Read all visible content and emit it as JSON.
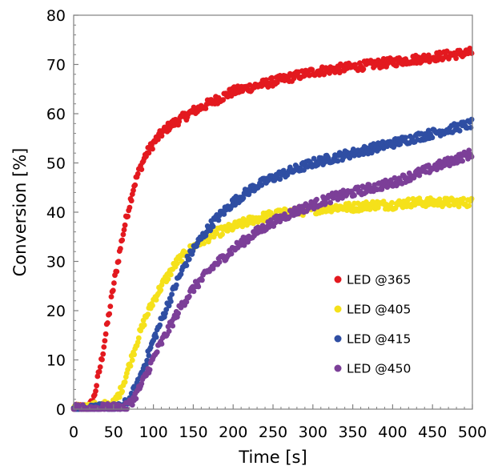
{
  "chart_data": {
    "type": "scatter",
    "xlabel": "Time [s]",
    "ylabel": "Conversion [%]",
    "xlim": [
      0,
      500
    ],
    "ylim": [
      0,
      80
    ],
    "x_ticks": [
      "0",
      "50",
      "100",
      "150",
      "200",
      "250",
      "300",
      "350",
      "400",
      "450",
      "500"
    ],
    "y_ticks": [
      "0",
      "10",
      "20",
      "30",
      "40",
      "50",
      "60",
      "70",
      "80"
    ],
    "grid": false,
    "legend_position": "bottom-right",
    "series": [
      {
        "name": "LED @365",
        "color": "#e3191f",
        "points": [
          [
            0,
            0
          ],
          [
            20,
            0.5
          ],
          [
            25,
            2
          ],
          [
            30,
            6
          ],
          [
            35,
            10
          ],
          [
            40,
            15
          ],
          [
            45,
            20
          ],
          [
            50,
            25
          ],
          [
            55,
            29.5
          ],
          [
            60,
            34
          ],
          [
            65,
            38
          ],
          [
            70,
            41.5
          ],
          [
            75,
            45
          ],
          [
            80,
            47.5
          ],
          [
            90,
            51.5
          ],
          [
            100,
            54
          ],
          [
            110,
            56
          ],
          [
            120,
            57.5
          ],
          [
            130,
            58.5
          ],
          [
            150,
            60.5
          ],
          [
            175,
            62.5
          ],
          [
            200,
            64.5
          ],
          [
            225,
            65.5
          ],
          [
            250,
            66.5
          ],
          [
            275,
            67.5
          ],
          [
            300,
            68.5
          ],
          [
            325,
            69
          ],
          [
            350,
            69.5
          ],
          [
            375,
            70
          ],
          [
            400,
            70.5
          ],
          [
            425,
            71
          ],
          [
            450,
            71.5
          ],
          [
            475,
            72
          ],
          [
            500,
            72.5
          ]
        ]
      },
      {
        "name": "LED @405",
        "color": "#f5e11a",
        "points": [
          [
            0,
            0
          ],
          [
            50,
            1
          ],
          [
            60,
            4
          ],
          [
            70,
            9
          ],
          [
            80,
            14
          ],
          [
            90,
            18.5
          ],
          [
            100,
            22
          ],
          [
            110,
            25
          ],
          [
            120,
            27.5
          ],
          [
            130,
            30
          ],
          [
            140,
            31.5
          ],
          [
            150,
            33
          ],
          [
            175,
            35.5
          ],
          [
            200,
            37
          ],
          [
            225,
            38.5
          ],
          [
            250,
            39.5
          ],
          [
            275,
            40
          ],
          [
            300,
            40.5
          ],
          [
            325,
            41
          ],
          [
            350,
            41
          ],
          [
            375,
            41.5
          ],
          [
            400,
            41.5
          ],
          [
            425,
            42
          ],
          [
            450,
            42
          ],
          [
            475,
            42
          ],
          [
            500,
            42
          ]
        ]
      },
      {
        "name": "LED @415",
        "color": "#2f4ea3",
        "points": [
          [
            0,
            0
          ],
          [
            60,
            0.3
          ],
          [
            70,
            2
          ],
          [
            80,
            5
          ],
          [
            90,
            9.5
          ],
          [
            100,
            14
          ],
          [
            110,
            18
          ],
          [
            120,
            22
          ],
          [
            130,
            26
          ],
          [
            140,
            29.5
          ],
          [
            150,
            32.5
          ],
          [
            175,
            38
          ],
          [
            200,
            42
          ],
          [
            225,
            45
          ],
          [
            250,
            47
          ],
          [
            275,
            48.5
          ],
          [
            300,
            50
          ],
          [
            325,
            51
          ],
          [
            350,
            52
          ],
          [
            375,
            53
          ],
          [
            400,
            54
          ],
          [
            425,
            55
          ],
          [
            450,
            56
          ],
          [
            475,
            57
          ],
          [
            500,
            58
          ]
        ]
      },
      {
        "name": "LED @450",
        "color": "#7c3f98",
        "points": [
          [
            0,
            0
          ],
          [
            65,
            0.3
          ],
          [
            75,
            2
          ],
          [
            85,
            5
          ],
          [
            95,
            8.5
          ],
          [
            105,
            12
          ],
          [
            115,
            15
          ],
          [
            125,
            18
          ],
          [
            135,
            21
          ],
          [
            150,
            24.5
          ],
          [
            175,
            29
          ],
          [
            200,
            32.5
          ],
          [
            225,
            35.5
          ],
          [
            250,
            38
          ],
          [
            275,
            40
          ],
          [
            300,
            41.5
          ],
          [
            325,
            43
          ],
          [
            350,
            44
          ],
          [
            375,
            45
          ],
          [
            400,
            46
          ],
          [
            425,
            47.5
          ],
          [
            450,
            49
          ],
          [
            475,
            50.5
          ],
          [
            500,
            52
          ]
        ]
      }
    ]
  }
}
